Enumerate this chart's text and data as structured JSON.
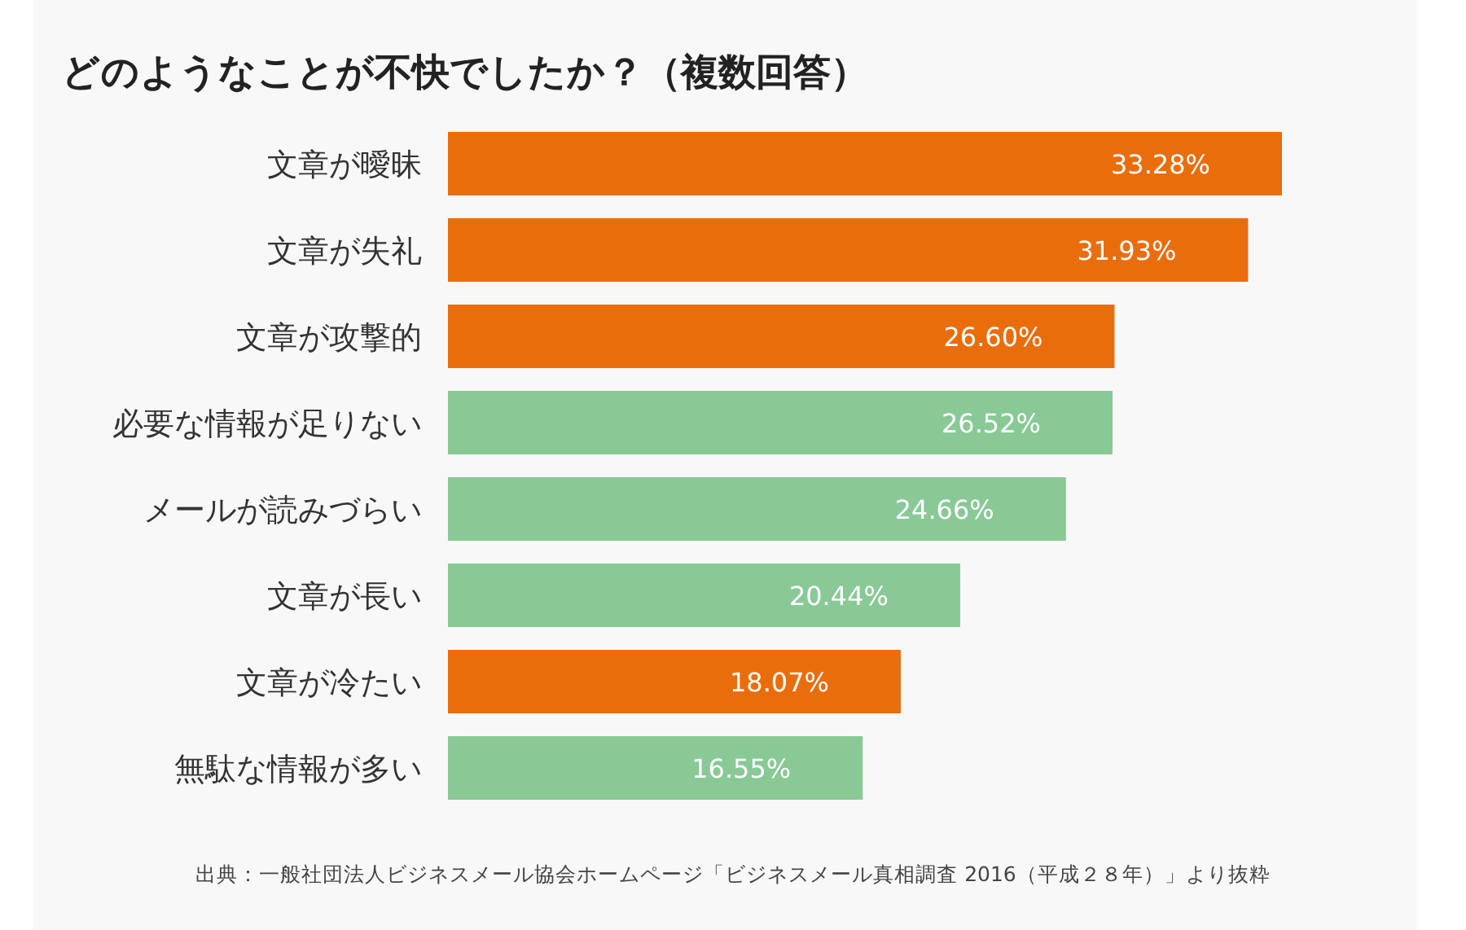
{
  "chart_data": {
    "type": "bar",
    "orientation": "horizontal",
    "title": "どのようなことが不快でしたか？（複数回答）",
    "categories": [
      "文章が曖昧",
      "文章が失礼",
      "文章が攻撃的",
      "必要な情報が足りない",
      "メールが読みづらい",
      "文章が長い",
      "文章が冷たい",
      "無駄な情報が多い"
    ],
    "values": [
      33.28,
      31.93,
      26.6,
      26.52,
      24.66,
      20.44,
      18.07,
      16.55
    ],
    "value_labels": [
      "33.28%",
      "31.93%",
      "26.60%",
      "26.52%",
      "24.66%",
      "20.44%",
      "18.07%",
      "16.55%"
    ],
    "colors": [
      "#ea6d0c",
      "#ea6d0c",
      "#ea6d0c",
      "#88c996",
      "#88c996",
      "#88c996",
      "#ea6d0c",
      "#88c996"
    ],
    "annotations": [
      "出典：一般社団法人ビジネスメール協会ホームページ「ビジネスメール真相調査 2016（平成２８年）」より抜粋"
    ]
  }
}
